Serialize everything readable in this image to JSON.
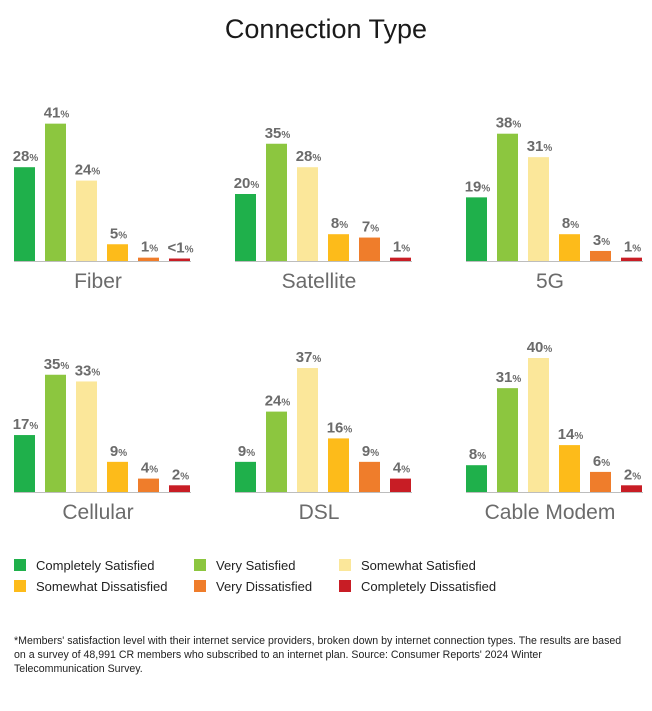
{
  "title": "Connection Type",
  "legend": [
    {
      "label": "Completely Satisfied",
      "color": "#1fb04b"
    },
    {
      "label": "Very Satisfied",
      "color": "#8cc63f"
    },
    {
      "label": "Somewhat Satisfied",
      "color": "#fbe79a"
    },
    {
      "label": "Somewhat Dissatisfied",
      "color": "#fdbb1a"
    },
    {
      "label": "Very Dissatisfied",
      "color": "#ef7d2b"
    },
    {
      "label": "Completely Dissatisfied",
      "color": "#c81d25"
    }
  ],
  "footnote": "*Members' satisfaction level with their internet service providers, broken down by internet connection types. The results are based on a survey of 48,991 CR members who subscribed to an internet plan. Source: Consumer Reports' 2024 Winter Telecommunication Survey.",
  "chart_data": [
    {
      "type": "bar",
      "title": "Fiber",
      "categories": [
        "Completely Satisfied",
        "Very Satisfied",
        "Somewhat Satisfied",
        "Somewhat Dissatisfied",
        "Very Dissatisfied",
        "Completely Dissatisfied"
      ],
      "values": [
        28,
        41,
        24,
        5,
        1,
        0.5
      ],
      "labels": [
        "28",
        "41",
        "24",
        "5",
        "1",
        "<1"
      ],
      "unit": "%"
    },
    {
      "type": "bar",
      "title": "Satellite",
      "categories": [
        "Completely Satisfied",
        "Very Satisfied",
        "Somewhat Satisfied",
        "Somewhat Dissatisfied",
        "Very Dissatisfied",
        "Completely Dissatisfied"
      ],
      "values": [
        20,
        35,
        28,
        8,
        7,
        1
      ],
      "labels": [
        "20",
        "35",
        "28",
        "8",
        "7",
        "1"
      ],
      "unit": "%"
    },
    {
      "type": "bar",
      "title": "5G",
      "categories": [
        "Completely Satisfied",
        "Very Satisfied",
        "Somewhat Satisfied",
        "Somewhat Dissatisfied",
        "Very Dissatisfied",
        "Completely Dissatisfied"
      ],
      "values": [
        19,
        38,
        31,
        8,
        3,
        1
      ],
      "labels": [
        "19",
        "38",
        "31",
        "8",
        "3",
        "1"
      ],
      "unit": "%"
    },
    {
      "type": "bar",
      "title": "Cellular",
      "categories": [
        "Completely Satisfied",
        "Very Satisfied",
        "Somewhat Satisfied",
        "Somewhat Dissatisfied",
        "Very Dissatisfied",
        "Completely Dissatisfied"
      ],
      "values": [
        17,
        35,
        33,
        9,
        4,
        2
      ],
      "labels": [
        "17",
        "35",
        "33",
        "9",
        "4",
        "2"
      ],
      "unit": "%"
    },
    {
      "type": "bar",
      "title": "DSL",
      "categories": [
        "Completely Satisfied",
        "Very Satisfied",
        "Somewhat Satisfied",
        "Somewhat Dissatisfied",
        "Very Dissatisfied",
        "Completely Dissatisfied"
      ],
      "values": [
        9,
        24,
        37,
        16,
        9,
        4
      ],
      "labels": [
        "9",
        "24",
        "37",
        "16",
        "9",
        "4"
      ],
      "unit": "%"
    },
    {
      "type": "bar",
      "title": "Cable Modem",
      "categories": [
        "Completely Satisfied",
        "Very Satisfied",
        "Somewhat Satisfied",
        "Somewhat Dissatisfied",
        "Very Dissatisfied",
        "Completely Dissatisfied"
      ],
      "values": [
        8,
        31,
        40,
        14,
        6,
        2
      ],
      "labels": [
        "8",
        "31",
        "40",
        "14",
        "6",
        "2"
      ],
      "unit": "%"
    }
  ]
}
